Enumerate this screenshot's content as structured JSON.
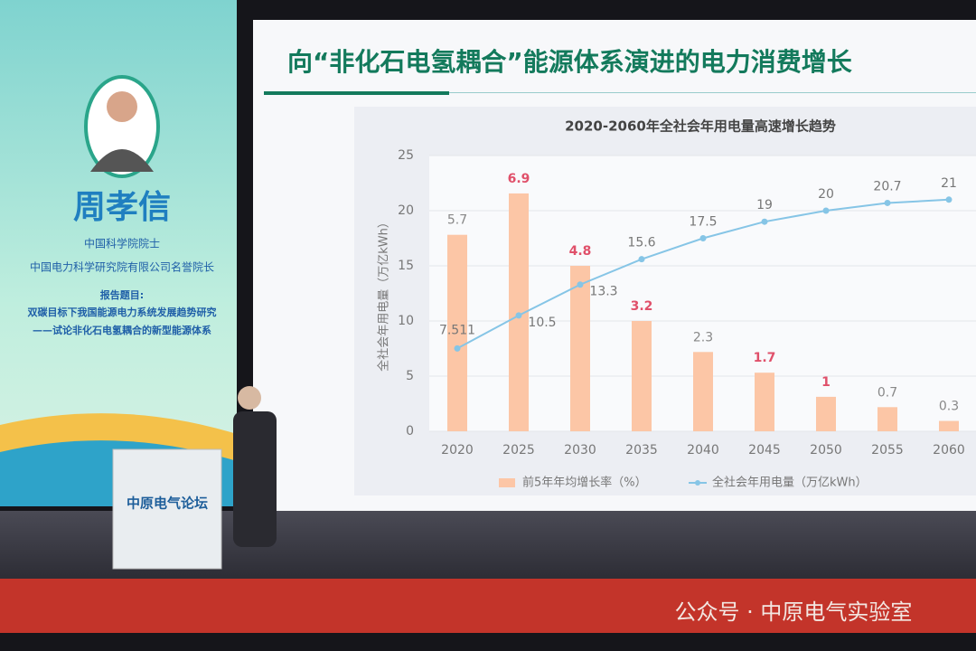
{
  "banner": {
    "name": "周孝信",
    "titles": [
      "中国科学院院士",
      "中国电力科学研究院有限公司名誉院长"
    ],
    "topic_label": "报告题目:",
    "topic": [
      "双碳目标下我国能源电力系统发展趋势研究",
      "——试论非化石电氢耦合的新型能源体系"
    ]
  },
  "slide_title": "向“非化石电氢耦合”能源体系演进的电力消费增长",
  "podium": "中原电气论坛",
  "watermark": "公众号 · 中原电气实验室",
  "chart_data": {
    "type": "bar-line",
    "title": "2020-2060年全社会年用电量高速增长趋势",
    "ylabel": "全社会年用电量（万亿kWh）",
    "categories": [
      "2020",
      "2025",
      "2030",
      "2035",
      "2040",
      "2045",
      "2050",
      "2055",
      "2060"
    ],
    "ylim": [
      0,
      25
    ],
    "yticks": [
      0,
      5,
      10,
      15,
      20,
      25
    ],
    "y2lim": [
      0,
      8
    ],
    "grid": true,
    "legend": "bottom",
    "series": [
      {
        "name": "前5年年均增长率（%）",
        "type": "bar",
        "axis": "y2",
        "color": "#fcc6a6",
        "values": [
          5.7,
          6.9,
          4.8,
          3.2,
          2.3,
          1.7,
          1,
          0.7,
          0.3
        ],
        "value_label_colors": [
          "#888888",
          "#e0506a",
          "#e0506a",
          "#e0506a",
          "#888888",
          "#e0506a",
          "#e0506a",
          "#888888",
          "#888888"
        ]
      },
      {
        "name": "全社会年用电量（万亿kWh）",
        "type": "line",
        "color": "#86c5e6",
        "values": [
          7.511,
          10.5,
          13.3,
          15.6,
          17.5,
          19,
          20,
          20.7,
          21
        ]
      }
    ]
  }
}
